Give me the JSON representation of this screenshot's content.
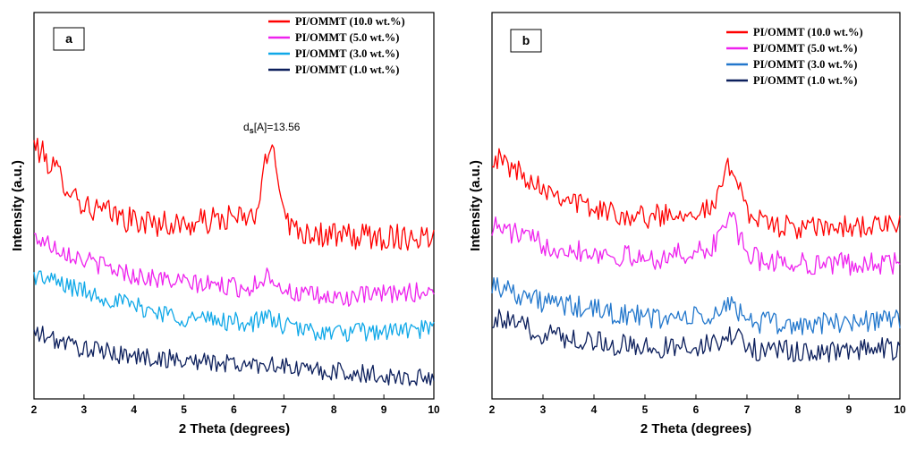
{
  "colors": {
    "red": "#ff0000",
    "magenta": "#ee22ee",
    "light_blue": "#0fa8e8",
    "steel_blue": "#2277cc",
    "navy": "#0c1f5c"
  },
  "chart_data": [
    {
      "type": "line",
      "panel_label": "a",
      "title": "",
      "xlabel": "2 Theta (degrees)",
      "ylabel": "Intensity (a.u.)",
      "xlim": [
        2,
        10
      ],
      "ylim": [
        0,
        100
      ],
      "x_ticks": [
        "2",
        "3",
        "4",
        "5",
        "6",
        "7",
        "8",
        "9",
        "10"
      ],
      "legend_position": "top-right",
      "annotation": {
        "text": "ds[A]=13.56",
        "x": 6.8,
        "y": 77
      },
      "series": [
        {
          "name": "PI/OMMT (10.0 wt.%)",
          "color": "#ff0000",
          "baseline": [
            [
              2,
              66
            ],
            [
              3,
              50
            ],
            [
              4,
              46
            ],
            [
              5,
              45
            ],
            [
              6,
              47
            ],
            [
              8,
              42
            ],
            [
              10,
              42
            ]
          ],
          "peak": {
            "center": 6.75,
            "height": 20,
            "width": 0.22
          },
          "noise": 3.5
        },
        {
          "name": "PI/OMMT (5.0 wt.%)",
          "color": "#ee22ee",
          "baseline": [
            [
              2,
              42
            ],
            [
              3,
              36
            ],
            [
              4,
              32
            ],
            [
              5,
              30
            ],
            [
              6,
              29
            ],
            [
              8,
              26
            ],
            [
              10,
              28
            ]
          ],
          "peak": {
            "center": 6.7,
            "height": 4,
            "width": 0.25
          },
          "noise": 2.5
        },
        {
          "name": "PI/OMMT (3.0 wt.%)",
          "color": "#0fa8e8",
          "baseline": [
            [
              2,
              32
            ],
            [
              3,
              28
            ],
            [
              4,
              24
            ],
            [
              5,
              21
            ],
            [
              6,
              20
            ],
            [
              8,
              17
            ],
            [
              10,
              18
            ]
          ],
          "peak": {
            "center": 6.7,
            "height": 2,
            "width": 0.25
          },
          "noise": 2.5
        },
        {
          "name": "PI/OMMT (1.0 wt.%)",
          "color": "#0c1f5c",
          "baseline": [
            [
              2,
              17
            ],
            [
              3,
              13
            ],
            [
              4,
              11
            ],
            [
              5,
              10
            ],
            [
              6,
              9
            ],
            [
              8,
              7
            ],
            [
              10,
              5
            ]
          ],
          "peak": {
            "center": 6.7,
            "height": 1,
            "width": 0.25
          },
          "noise": 2.5
        }
      ]
    },
    {
      "type": "line",
      "panel_label": "b",
      "title": "",
      "xlabel": "2 Theta (degrees)",
      "ylabel": "Intensity (a.u.)",
      "xlim": [
        2,
        10
      ],
      "ylim": [
        0,
        100
      ],
      "x_ticks": [
        "2",
        "3",
        "4",
        "5",
        "6",
        "7",
        "8",
        "9",
        "10"
      ],
      "legend_position": "top-right",
      "series": [
        {
          "name": "PI/OMMT (10.0 wt.%)",
          "color": "#ff0000",
          "baseline": [
            [
              2,
              63
            ],
            [
              3,
              55
            ],
            [
              4,
              49
            ],
            [
              5,
              47
            ],
            [
              6,
              49
            ],
            [
              8,
              44
            ],
            [
              10,
              45
            ]
          ],
          "peak": {
            "center": 6.7,
            "height": 13,
            "width": 0.25
          },
          "noise": 3
        },
        {
          "name": "PI/OMMT (5.0 wt.%)",
          "color": "#ee22ee",
          "baseline": [
            [
              2,
              45
            ],
            [
              3,
              40
            ],
            [
              4,
              38
            ],
            [
              5,
              36
            ],
            [
              6,
              38
            ],
            [
              8,
              35
            ],
            [
              10,
              35
            ]
          ],
          "peak": {
            "center": 6.65,
            "height": 10,
            "width": 0.25
          },
          "noise": 3
        },
        {
          "name": "PI/OMMT (3.0 wt.%)",
          "color": "#2277cc",
          "baseline": [
            [
              2,
              30
            ],
            [
              3,
              25
            ],
            [
              4,
              23
            ],
            [
              5,
              21
            ],
            [
              6,
              21
            ],
            [
              8,
              19
            ],
            [
              10,
              21
            ]
          ],
          "peak": {
            "center": 6.7,
            "height": 4,
            "width": 0.25
          },
          "noise": 3
        },
        {
          "name": "PI/OMMT (1.0 wt.%)",
          "color": "#0c1f5c",
          "baseline": [
            [
              2,
              21
            ],
            [
              3,
              17
            ],
            [
              4,
              15
            ],
            [
              5,
              13
            ],
            [
              6,
              14
            ],
            [
              8,
              12
            ],
            [
              10,
              13
            ]
          ],
          "peak": {
            "center": 6.7,
            "height": 3,
            "width": 0.25
          },
          "noise": 3
        }
      ]
    }
  ]
}
